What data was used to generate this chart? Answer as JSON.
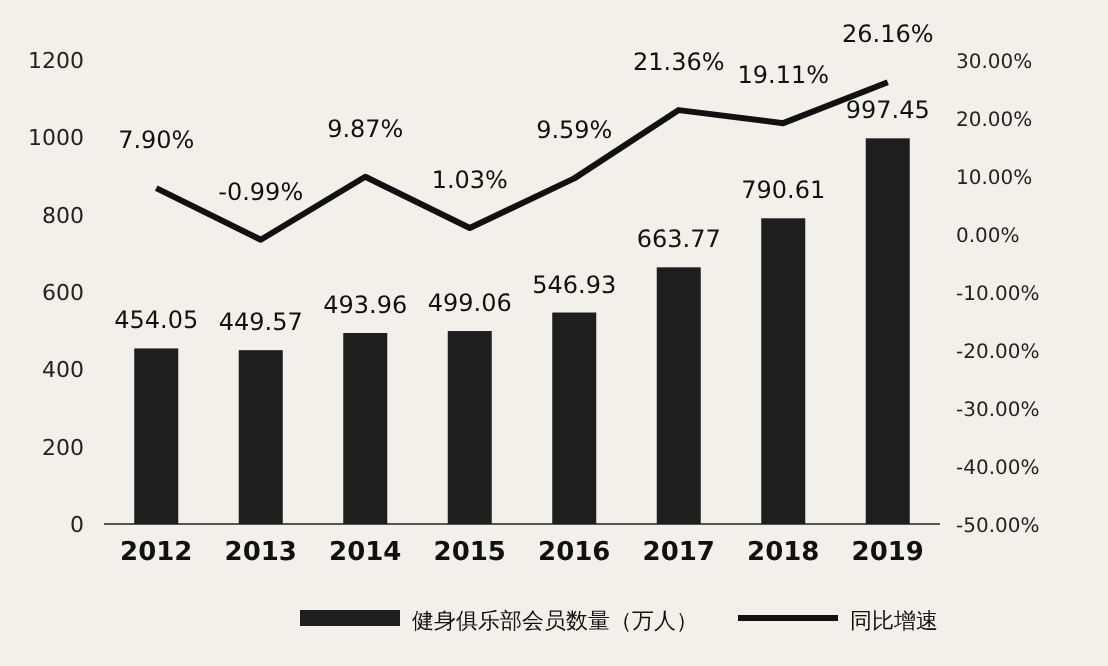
{
  "chart_data": {
    "type": "bar",
    "categories": [
      "2012",
      "2013",
      "2014",
      "2015",
      "2016",
      "2017",
      "2018",
      "2019"
    ],
    "series": [
      {
        "name": "健身俱乐部会员数量（万人）",
        "color": "#1e1e1e",
        "values": [
          454.05,
          449.57,
          493.96,
          499.06,
          546.93,
          663.77,
          790.61,
          997.45
        ],
        "value_labels": [
          "454.05",
          "449.57",
          "493.96",
          "499.06",
          "546.93",
          "663.77",
          "790.61",
          "997.45"
        ]
      },
      {
        "name": "同比增速",
        "type": "line",
        "axis": "y2",
        "color": "#111111",
        "values": [
          7.9,
          -0.99,
          9.87,
          1.03,
          9.59,
          21.36,
          19.11,
          26.16
        ],
        "value_labels": [
          "7.90%",
          "-0.99%",
          "9.87%",
          "1.03%",
          "9.59%",
          "21.36%",
          "19.11%",
          "26.16%"
        ]
      }
    ],
    "ylim": [
      0,
      1200
    ],
    "yticks": [
      0,
      200,
      400,
      600,
      800,
      1000,
      1200
    ],
    "y2lim": [
      -50,
      30
    ],
    "y2ticks": [
      {
        "value": 30,
        "label": "30.00%"
      },
      {
        "value": 20,
        "label": "20.00%"
      },
      {
        "value": 10,
        "label": "10.00%"
      },
      {
        "value": 0,
        "label": "0.00%"
      },
      {
        "value": -10,
        "label": "-10.00%"
      },
      {
        "value": -20,
        "label": "-20.00%"
      },
      {
        "value": -30,
        "label": "-30.00%"
      },
      {
        "value": -40,
        "label": "-40.00%"
      },
      {
        "value": -50,
        "label": "-50.00%"
      }
    ],
    "legend": "bottom",
    "grid": false
  }
}
